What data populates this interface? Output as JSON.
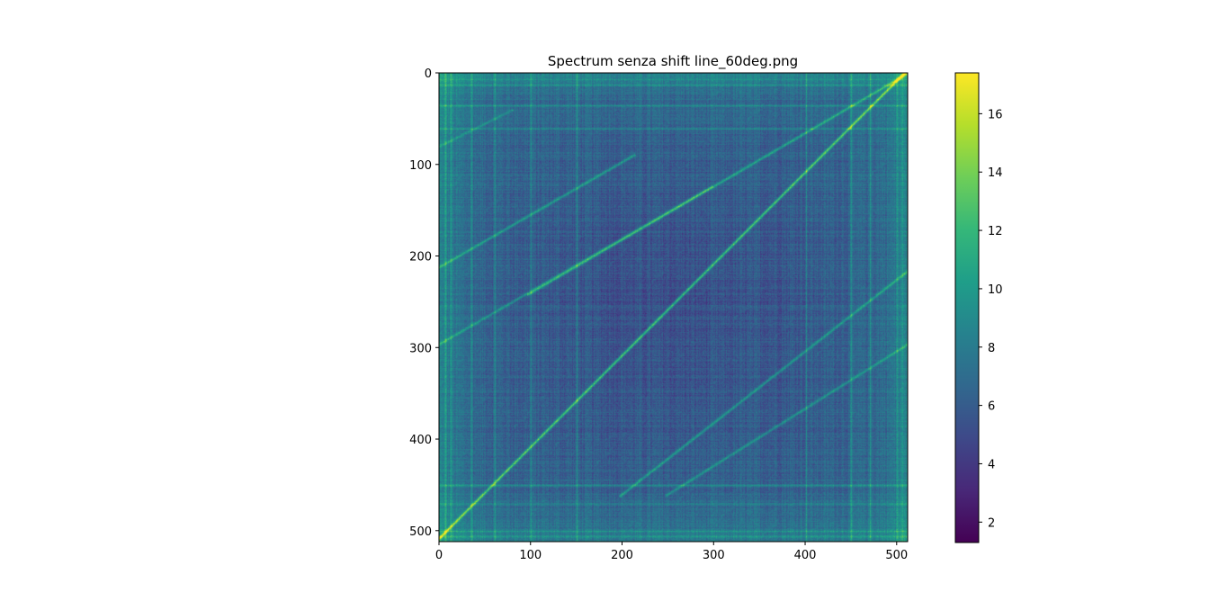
{
  "chart_data": {
    "type": "heatmap",
    "title": "Spectrum senza shift line_60deg.png",
    "xlabel": "",
    "ylabel": "",
    "image_size": [
      512,
      512
    ],
    "xlim": [
      0,
      512
    ],
    "ylim": [
      512,
      0
    ],
    "x_ticks": [
      0,
      100,
      200,
      300,
      400,
      500
    ],
    "y_ticks": [
      0,
      100,
      200,
      300,
      400,
      500
    ],
    "colormap": "viridis",
    "colorbar": {
      "range": [
        1.3,
        17.4
      ],
      "ticks": [
        2,
        4,
        6,
        8,
        10,
        12,
        14,
        16
      ]
    },
    "background_level": 6.5,
    "bright_lines": [
      {
        "from": [
          0,
          508
        ],
        "to": [
          508,
          0
        ],
        "value": 13.5
      },
      {
        "from": [
          0,
          212
        ],
        "to": [
          212,
          90
        ],
        "value": 10.5
      },
      {
        "from": [
          0,
          296
        ],
        "to": [
          296,
          125
        ],
        "value": 10.0
      },
      {
        "from": [
          100,
          240
        ],
        "to": [
          512,
          0
        ],
        "value": 11.0
      },
      {
        "from": [
          200,
          460
        ],
        "to": [
          512,
          216
        ],
        "value": 10.5
      },
      {
        "from": [
          250,
          460
        ],
        "to": [
          512,
          296
        ],
        "value": 10.0
      },
      {
        "from": [
          0,
          80
        ],
        "to": [
          80,
          40
        ],
        "value": 9.0
      }
    ],
    "bright_columns": [
      6,
      12,
      35,
      60,
      100,
      150,
      400,
      450,
      470,
      500,
      506
    ],
    "bright_rows": [
      6,
      12,
      35,
      60,
      450,
      470,
      500,
      506
    ],
    "grid": false,
    "legend": "none"
  },
  "colors": {
    "viridis_stops": [
      "#440154",
      "#482878",
      "#3e4989",
      "#31688e",
      "#26828e",
      "#1f9e89",
      "#35b779",
      "#6ece58",
      "#b5de2b",
      "#fde725"
    ]
  }
}
